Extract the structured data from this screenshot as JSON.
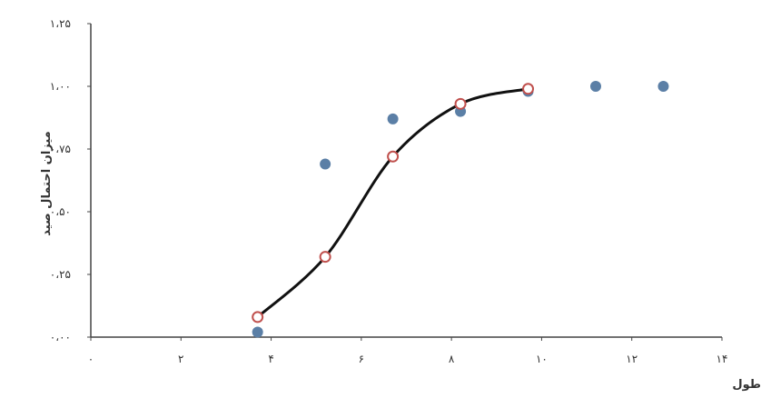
{
  "chart_data": {
    "type": "scatter",
    "title": "",
    "xlabel": "طول",
    "ylabel": "میزان احتمال صید",
    "xlim": [
      0,
      14
    ],
    "ylim": [
      0,
      1.25
    ],
    "x_ticks": [
      0,
      2,
      4,
      6,
      8,
      10,
      12,
      14
    ],
    "x_tick_labels": [
      "۰",
      "۲",
      "۴",
      "۶",
      "۸",
      "۱۰",
      "۱۲",
      "۱۴"
    ],
    "y_ticks": [
      0,
      0.25,
      0.5,
      0.75,
      1.0,
      1.25
    ],
    "y_tick_labels": [
      "۰،۰۰",
      "۰،۲۵",
      "۰،۵۰",
      "۰،۷۵",
      "۱،۰۰",
      "۱،۲۵"
    ],
    "grid": false,
    "series": [
      {
        "style": "markers",
        "color": "#5b7fa6",
        "x": [
          3.7,
          5.2,
          6.7,
          8.2,
          9.7,
          11.2,
          12.7
        ],
        "y": [
          0.02,
          0.69,
          0.87,
          0.9,
          0.98,
          1.0,
          1.0
        ]
      },
      {
        "style": "smooth-line-with-hollow-markers",
        "line_color": "#111111",
        "marker_color": "#c0504d",
        "x": [
          3.7,
          5.2,
          6.7,
          8.2,
          9.7
        ],
        "y": [
          0.08,
          0.32,
          0.72,
          0.93,
          0.99
        ]
      }
    ]
  }
}
